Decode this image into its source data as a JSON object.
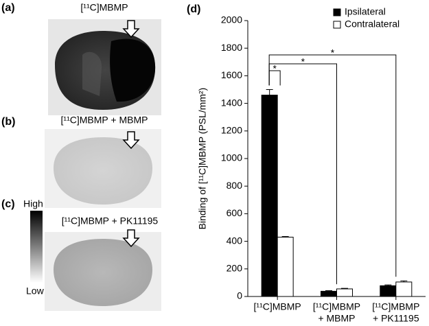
{
  "panels": [
    {
      "label": "(a)",
      "title": "[¹¹C]MBMP"
    },
    {
      "label": "(b)",
      "title": "[¹¹C]MBMP + MBMP"
    },
    {
      "label": "(c)",
      "title": "[¹¹C]MBMP + PK11195"
    }
  ],
  "colorbar": {
    "high": "High",
    "low": "Low"
  },
  "chart_data": {
    "type": "bar",
    "label": "(d)",
    "ylabel": "Binding of [¹¹C]MBMP (PSL/mm²)",
    "categories": [
      [
        "[¹¹C]MBMP"
      ],
      [
        "[¹¹C]MBMP",
        "+ MBMP"
      ],
      [
        "[¹¹C]MBMP",
        "+ PK11195"
      ]
    ],
    "series": [
      {
        "name": "Ipsilateral",
        "color": "#000000",
        "values": [
          1460,
          38,
          78
        ],
        "errors": [
          40,
          4,
          6
        ]
      },
      {
        "name": "Contralateral",
        "color": "#ffffff",
        "values": [
          430,
          55,
          105
        ],
        "errors": [
          5,
          4,
          8
        ]
      }
    ],
    "annotations": [
      "*",
      "*",
      "*"
    ],
    "ylim": [
      0,
      2000
    ],
    "yticks": [
      0,
      200,
      400,
      600,
      800,
      1000,
      1200,
      1400,
      1600,
      1800,
      2000
    ],
    "legend": "top-right"
  }
}
